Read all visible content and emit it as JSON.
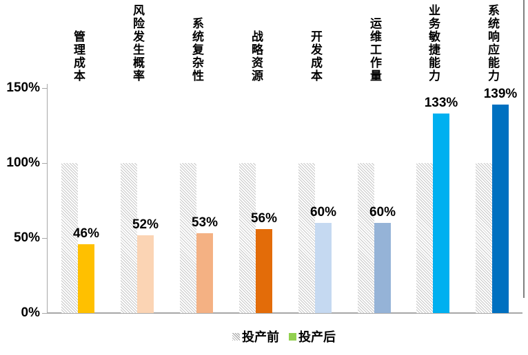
{
  "chart_data": {
    "type": "bar",
    "title": "",
    "categories": [
      "管理成本",
      "风险发生概率",
      "系统复杂性",
      "战略资源",
      "开发成本",
      "运维工作量",
      "业务敏捷能力",
      "系统响应能力"
    ],
    "series": [
      {
        "name": "投产前",
        "values": [
          100,
          100,
          100,
          100,
          100,
          100,
          100,
          100
        ],
        "style": "hatched",
        "hatch_color": "#C7C7C7"
      },
      {
        "name": "投产后",
        "values": [
          46,
          52,
          53,
          56,
          60,
          60,
          133,
          139
        ],
        "colors": [
          "#FFC000",
          "#FBD4B4",
          "#F4B183",
          "#E36C09",
          "#C5D9F1",
          "#95B3D7",
          "#00B0F0",
          "#0070C0"
        ]
      }
    ],
    "data_labels": [
      "46%",
      "52%",
      "53%",
      "56%",
      "60%",
      "60%",
      "133%",
      "139%"
    ],
    "y_ticks": [
      {
        "label": "150%",
        "value": 150
      },
      {
        "label": "100%",
        "value": 100
      },
      {
        "label": "50%",
        "value": 50
      },
      {
        "label": "0%",
        "value": 0
      }
    ],
    "ylim": [
      0,
      150
    ],
    "grid": false,
    "legend_position": "bottom",
    "legend": [
      {
        "label": "投产前",
        "swatch": "hatched",
        "color": "#BFBFBF"
      },
      {
        "label": "投产后",
        "swatch": "solid",
        "color": "#92D050"
      }
    ],
    "axis_color": "#A6A6A6"
  }
}
